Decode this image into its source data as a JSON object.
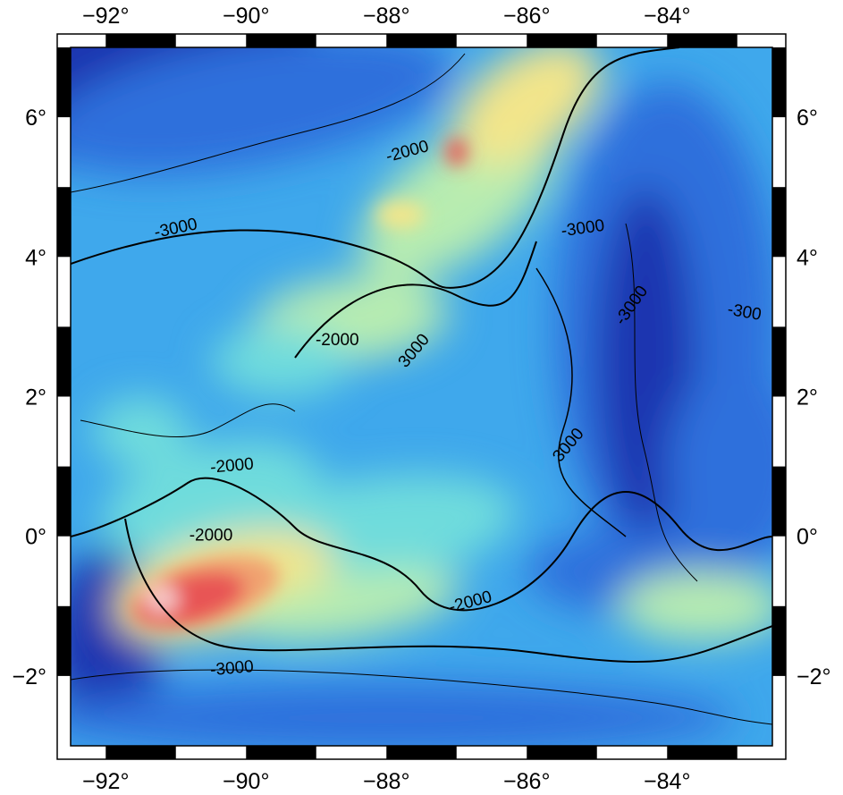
{
  "map": {
    "region": {
      "lon_min": -92.5,
      "lon_max": -82.5,
      "lat_min": -3,
      "lat_max": 7
    },
    "x_ticks": [
      {
        "value": -92,
        "label": "−92°"
      },
      {
        "value": -90,
        "label": "−90°"
      },
      {
        "value": -88,
        "label": "−88°"
      },
      {
        "value": -86,
        "label": "−86°"
      },
      {
        "value": -84,
        "label": "−84°"
      }
    ],
    "y_ticks": [
      {
        "value": 6,
        "label": "6°"
      },
      {
        "value": 4,
        "label": "4°"
      },
      {
        "value": 2,
        "label": "2°"
      },
      {
        "value": 0,
        "label": "0°"
      },
      {
        "value": -2,
        "label": "−2°"
      }
    ],
    "frame_interval_deg": 1,
    "colormap": [
      "#1a36b0",
      "#2f6fdc",
      "#3fa8ec",
      "#6fdcdc",
      "#b8ecb0",
      "#f3e58a",
      "#f0a070",
      "#e85454",
      "#f6c8c8"
    ],
    "contour_labels": [
      {
        "text": "-2000",
        "lon": -87.7,
        "lat": 5.5,
        "angle": -15
      },
      {
        "text": "-3000",
        "lon": -91.0,
        "lat": 4.4,
        "angle": -12
      },
      {
        "text": "-3000",
        "lon": -85.2,
        "lat": 4.4,
        "angle": -8
      },
      {
        "text": "-2000",
        "lon": -88.7,
        "lat": 2.8,
        "angle": 0
      },
      {
        "text": "3000",
        "lon": -87.6,
        "lat": 2.65,
        "angle": -50
      },
      {
        "text": "-3000",
        "lon": -84.5,
        "lat": 3.3,
        "angle": -55
      },
      {
        "text": "-300",
        "lon": -82.9,
        "lat": 3.2,
        "angle": 10
      },
      {
        "text": "-2000",
        "lon": -90.2,
        "lat": 1.0,
        "angle": -5
      },
      {
        "text": "3000",
        "lon": -85.4,
        "lat": 1.3,
        "angle": -50
      },
      {
        "text": "-2000",
        "lon": -90.5,
        "lat": 0.0,
        "angle": 0
      },
      {
        "text": "-2000",
        "lon": -86.8,
        "lat": -0.95,
        "angle": -15
      },
      {
        "text": "-3000",
        "lon": -90.2,
        "lat": -1.9,
        "angle": -5
      }
    ]
  }
}
